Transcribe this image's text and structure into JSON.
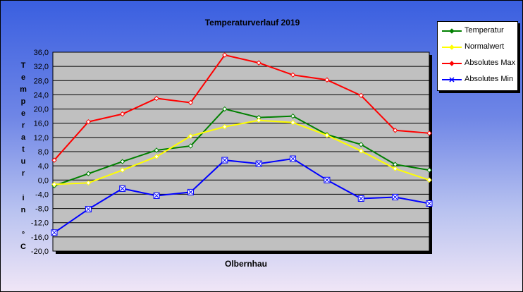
{
  "chart_data": {
    "type": "line",
    "title": "Temperaturverlauf  2019",
    "xlabel": "Olbernhau",
    "ylabel": "Temperatur in °C",
    "ylim": [
      -20,
      36
    ],
    "yticks": [
      "36,0",
      "32,0",
      "28,0",
      "24,0",
      "20,0",
      "16,0",
      "12,0",
      "8,0",
      "4,0",
      "0,0",
      "-4,0",
      "-8,0",
      "-12,0",
      "-16,0",
      "-20,0"
    ],
    "ytick_values": [
      36,
      32,
      28,
      24,
      20,
      16,
      12,
      8,
      4,
      0,
      -4,
      -8,
      -12,
      -16,
      -20
    ],
    "x": [
      1,
      2,
      3,
      4,
      5,
      6,
      7,
      8,
      9,
      10,
      11,
      12
    ],
    "grid": true,
    "legend_position": "top-right",
    "series": [
      {
        "name": "Temperatur",
        "color": "#008000",
        "marker": "diamond",
        "values": [
          -1.6,
          1.8,
          5.2,
          8.4,
          9.6,
          20.0,
          17.6,
          18.0,
          12.8,
          10.0,
          4.4,
          2.8
        ]
      },
      {
        "name": "Normalwert",
        "color": "#ffff00",
        "marker": "diamond",
        "values": [
          -1.2,
          -0.8,
          2.8,
          6.6,
          12.4,
          15.0,
          16.8,
          16.2,
          12.6,
          8.2,
          3.2,
          0.0
        ]
      },
      {
        "name": "Absolutes Max",
        "color": "#ff0000",
        "marker": "diamond",
        "values": [
          5.6,
          16.4,
          18.6,
          23.0,
          21.8,
          35.2,
          33.0,
          29.6,
          28.2,
          23.8,
          14.0,
          13.2
        ]
      },
      {
        "name": "Absolutes Min",
        "color": "#0000ff",
        "marker": "x",
        "values": [
          -14.8,
          -8.2,
          -2.4,
          -4.4,
          -3.4,
          5.6,
          4.6,
          6.0,
          0.0,
          -5.2,
          -4.8,
          -6.6
        ]
      }
    ]
  }
}
